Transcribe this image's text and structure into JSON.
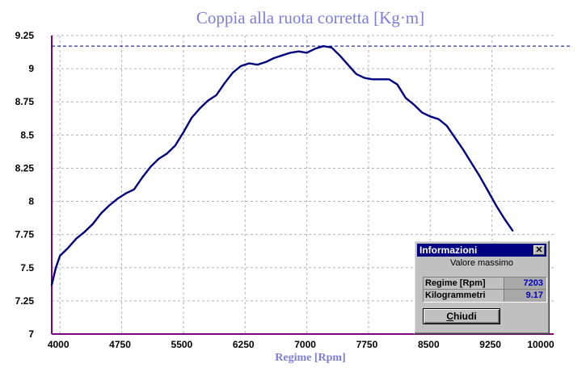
{
  "chart_data": {
    "type": "line",
    "title": "Coppia alla ruota corretta [Kg·m]",
    "xlabel": "Regime [Rpm]",
    "ylabel": "",
    "xlim": [
      3900,
      10000
    ],
    "ylim": [
      7,
      9.25
    ],
    "x_ticks": [
      4000,
      4750,
      5500,
      6250,
      7000,
      7750,
      8500,
      9250,
      10000
    ],
    "x_tick_labels": [
      "4000",
      "4750",
      "5500",
      "6250",
      "7000",
      "7750",
      "8500",
      "9250",
      "10000"
    ],
    "y_ticks": [
      7,
      7.25,
      7.5,
      7.75,
      8,
      8.25,
      8.5,
      8.75,
      9,
      9.25
    ],
    "y_tick_labels": [
      "7",
      "7.25",
      "7.5",
      "7.75",
      "8",
      "8.25",
      "8.5",
      "8.75",
      "9",
      "9.25"
    ],
    "grid": true,
    "max_reference_line": 9.17,
    "line_color": "#000080",
    "series": [
      {
        "x": [
          3900,
          3950,
          4000,
          4100,
          4200,
          4300,
          4400,
          4500,
          4600,
          4700,
          4800,
          4900,
          5000,
          5100,
          5200,
          5300,
          5400,
          5500,
          5600,
          5700,
          5800,
          5900,
          6000,
          6100,
          6200,
          6300,
          6400,
          6500,
          6600,
          6700,
          6800,
          6900,
          7000,
          7100,
          7200,
          7300,
          7400,
          7500,
          7600,
          7700,
          7800,
          7900,
          8000,
          8100,
          8200,
          8300,
          8400,
          8500,
          8600,
          8700,
          8800,
          8900,
          9000,
          9100,
          9200,
          9300,
          9400,
          9500
        ],
        "values": [
          7.37,
          7.5,
          7.59,
          7.65,
          7.72,
          7.77,
          7.83,
          7.91,
          7.97,
          8.02,
          8.06,
          8.09,
          8.18,
          8.26,
          8.32,
          8.36,
          8.42,
          8.52,
          8.63,
          8.7,
          8.76,
          8.8,
          8.89,
          8.97,
          9.02,
          9.04,
          9.03,
          9.05,
          9.08,
          9.1,
          9.12,
          9.13,
          9.12,
          9.15,
          9.17,
          9.16,
          9.1,
          9.03,
          8.96,
          8.93,
          8.92,
          8.92,
          8.92,
          8.88,
          8.78,
          8.73,
          8.67,
          8.64,
          8.62,
          8.57,
          8.48,
          8.39,
          8.29,
          8.19,
          8.08,
          7.97,
          7.87,
          7.78
        ]
      }
    ]
  },
  "dialog": {
    "title": "Informazioni",
    "close_glyph": "✕",
    "subtitle": "Valore massimo",
    "rows": [
      {
        "label": "Regime [Rpm]",
        "value": "7203"
      },
      {
        "label": "Kilogrammetri",
        "value": "9.17"
      }
    ],
    "button_label_mnemonic": "C",
    "button_label_rest": "hiudi"
  }
}
